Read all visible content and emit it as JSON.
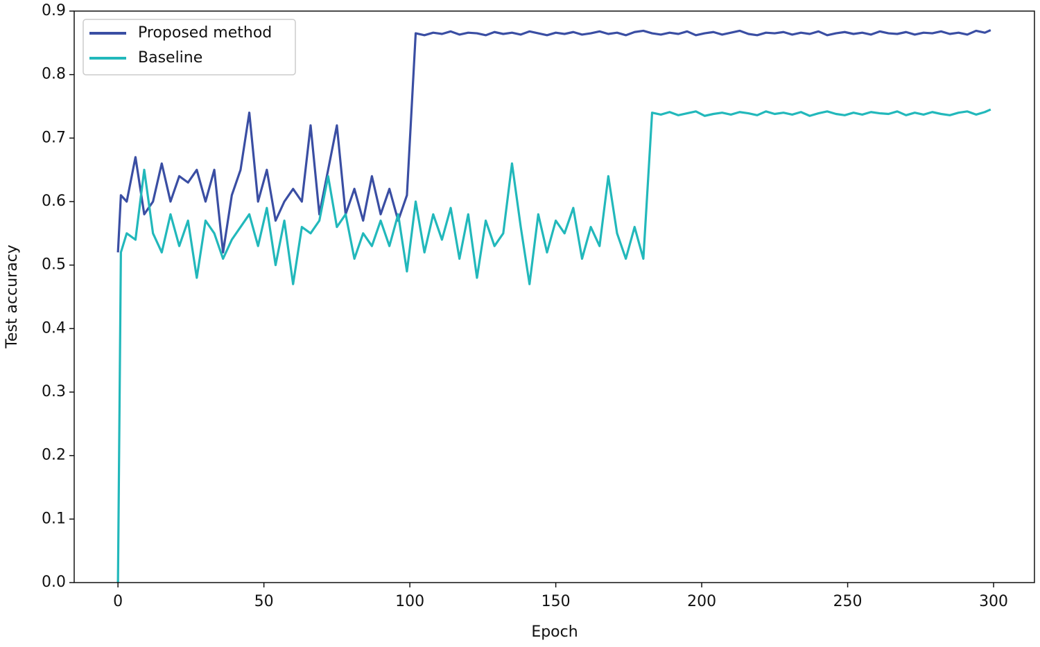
{
  "chart_data": {
    "type": "line",
    "xlabel": "Epoch",
    "ylabel": "Test accuracy",
    "xlim": [
      -15,
      314
    ],
    "ylim": [
      0,
      0.9
    ],
    "xticks": [
      0,
      50,
      100,
      150,
      200,
      250,
      300
    ],
    "yticks": [
      {
        "value": 0,
        "label": "0.0"
      },
      0.1,
      0.2,
      0.3,
      0.4,
      0.5,
      0.6,
      0.7,
      0.8,
      0.9
    ],
    "legend": "upper left",
    "x": [
      0,
      1,
      3,
      6,
      9,
      12,
      15,
      18,
      21,
      24,
      27,
      30,
      33,
      36,
      39,
      42,
      45,
      48,
      51,
      54,
      57,
      60,
      63,
      66,
      69,
      72,
      75,
      78,
      81,
      84,
      87,
      90,
      93,
      96,
      99,
      102,
      105,
      108,
      111,
      114,
      117,
      120,
      123,
      126,
      129,
      132,
      135,
      138,
      141,
      144,
      147,
      150,
      153,
      156,
      159,
      162,
      165,
      168,
      171,
      174,
      177,
      180,
      183,
      186,
      189,
      192,
      195,
      198,
      201,
      204,
      207,
      210,
      213,
      216,
      219,
      222,
      225,
      228,
      231,
      234,
      237,
      240,
      243,
      246,
      249,
      252,
      255,
      258,
      261,
      264,
      267,
      270,
      273,
      276,
      279,
      282,
      285,
      288,
      291,
      294,
      297,
      299
    ],
    "series": [
      {
        "name": "Proposed method",
        "color": "#3a4ea3",
        "values": [
          0.52,
          0.61,
          0.6,
          0.67,
          0.58,
          0.6,
          0.66,
          0.6,
          0.64,
          0.63,
          0.65,
          0.6,
          0.65,
          0.52,
          0.61,
          0.65,
          0.74,
          0.6,
          0.65,
          0.57,
          0.6,
          0.62,
          0.6,
          0.72,
          0.58,
          0.65,
          0.72,
          0.58,
          0.62,
          0.57,
          0.64,
          0.58,
          0.62,
          0.57,
          0.61,
          0.865,
          0.862,
          0.866,
          0.864,
          0.868,
          0.863,
          0.866,
          0.865,
          0.862,
          0.867,
          0.864,
          0.866,
          0.863,
          0.868,
          0.865,
          0.862,
          0.866,
          0.864,
          0.867,
          0.863,
          0.865,
          0.868,
          0.864,
          0.866,
          0.862,
          0.867,
          0.869,
          0.865,
          0.863,
          0.866,
          0.864,
          0.868,
          0.862,
          0.865,
          0.867,
          0.863,
          0.866,
          0.869,
          0.864,
          0.862,
          0.866,
          0.865,
          0.867,
          0.863,
          0.866,
          0.864,
          0.868,
          0.862,
          0.865,
          0.867,
          0.864,
          0.866,
          0.863,
          0.868,
          0.865,
          0.864,
          0.867,
          0.863,
          0.866,
          0.865,
          0.868,
          0.864,
          0.866,
          0.863,
          0.869,
          0.866,
          0.87
        ]
      },
      {
        "name": "Baseline",
        "color": "#22b8bb",
        "values": [
          0.0,
          0.52,
          0.55,
          0.54,
          0.65,
          0.55,
          0.52,
          0.58,
          0.53,
          0.57,
          0.48,
          0.57,
          0.55,
          0.51,
          0.54,
          0.56,
          0.58,
          0.53,
          0.59,
          0.5,
          0.57,
          0.47,
          0.56,
          0.55,
          0.57,
          0.64,
          0.56,
          0.58,
          0.51,
          0.55,
          0.53,
          0.57,
          0.53,
          0.58,
          0.49,
          0.6,
          0.52,
          0.58,
          0.54,
          0.59,
          0.51,
          0.58,
          0.48,
          0.57,
          0.53,
          0.55,
          0.66,
          0.56,
          0.47,
          0.58,
          0.52,
          0.57,
          0.55,
          0.59,
          0.51,
          0.56,
          0.53,
          0.64,
          0.55,
          0.51,
          0.56,
          0.51,
          0.74,
          0.737,
          0.741,
          0.736,
          0.739,
          0.742,
          0.735,
          0.738,
          0.74,
          0.737,
          0.741,
          0.739,
          0.736,
          0.742,
          0.738,
          0.74,
          0.737,
          0.741,
          0.735,
          0.739,
          0.742,
          0.738,
          0.736,
          0.74,
          0.737,
          0.741,
          0.739,
          0.738,
          0.742,
          0.736,
          0.74,
          0.737,
          0.741,
          0.738,
          0.736,
          0.74,
          0.742,
          0.737,
          0.741,
          0.745
        ]
      }
    ]
  }
}
